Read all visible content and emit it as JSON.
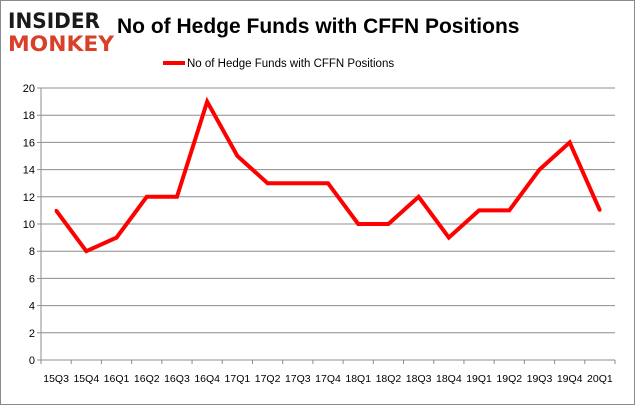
{
  "logo": {
    "line1": "INSIDER",
    "line2": "MONKEY",
    "colors": {
      "line1": "#1a1a1a",
      "line2": "#d9402a"
    }
  },
  "chart_data": {
    "type": "line",
    "title": "No of Hedge Funds with CFFN Positions",
    "xlabel": "",
    "ylabel": "",
    "categories": [
      "15Q3",
      "15Q4",
      "16Q1",
      "16Q2",
      "16Q3",
      "16Q4",
      "17Q1",
      "17Q2",
      "17Q3",
      "17Q4",
      "18Q1",
      "18Q2",
      "18Q3",
      "18Q4",
      "19Q1",
      "19Q2",
      "19Q3",
      "19Q4",
      "20Q1"
    ],
    "series": [
      {
        "name": "No of Hedge Funds with CFFN Positions",
        "color": "#ff0000",
        "values": [
          11,
          8,
          9,
          12,
          12,
          19,
          15,
          13,
          13,
          13,
          10,
          10,
          12,
          9,
          11,
          11,
          14,
          16,
          11
        ]
      }
    ],
    "ylim": [
      0,
      20
    ],
    "yticks": [
      0,
      2,
      4,
      6,
      8,
      10,
      12,
      14,
      16,
      18,
      20
    ],
    "grid": true,
    "legend": "top-center"
  }
}
